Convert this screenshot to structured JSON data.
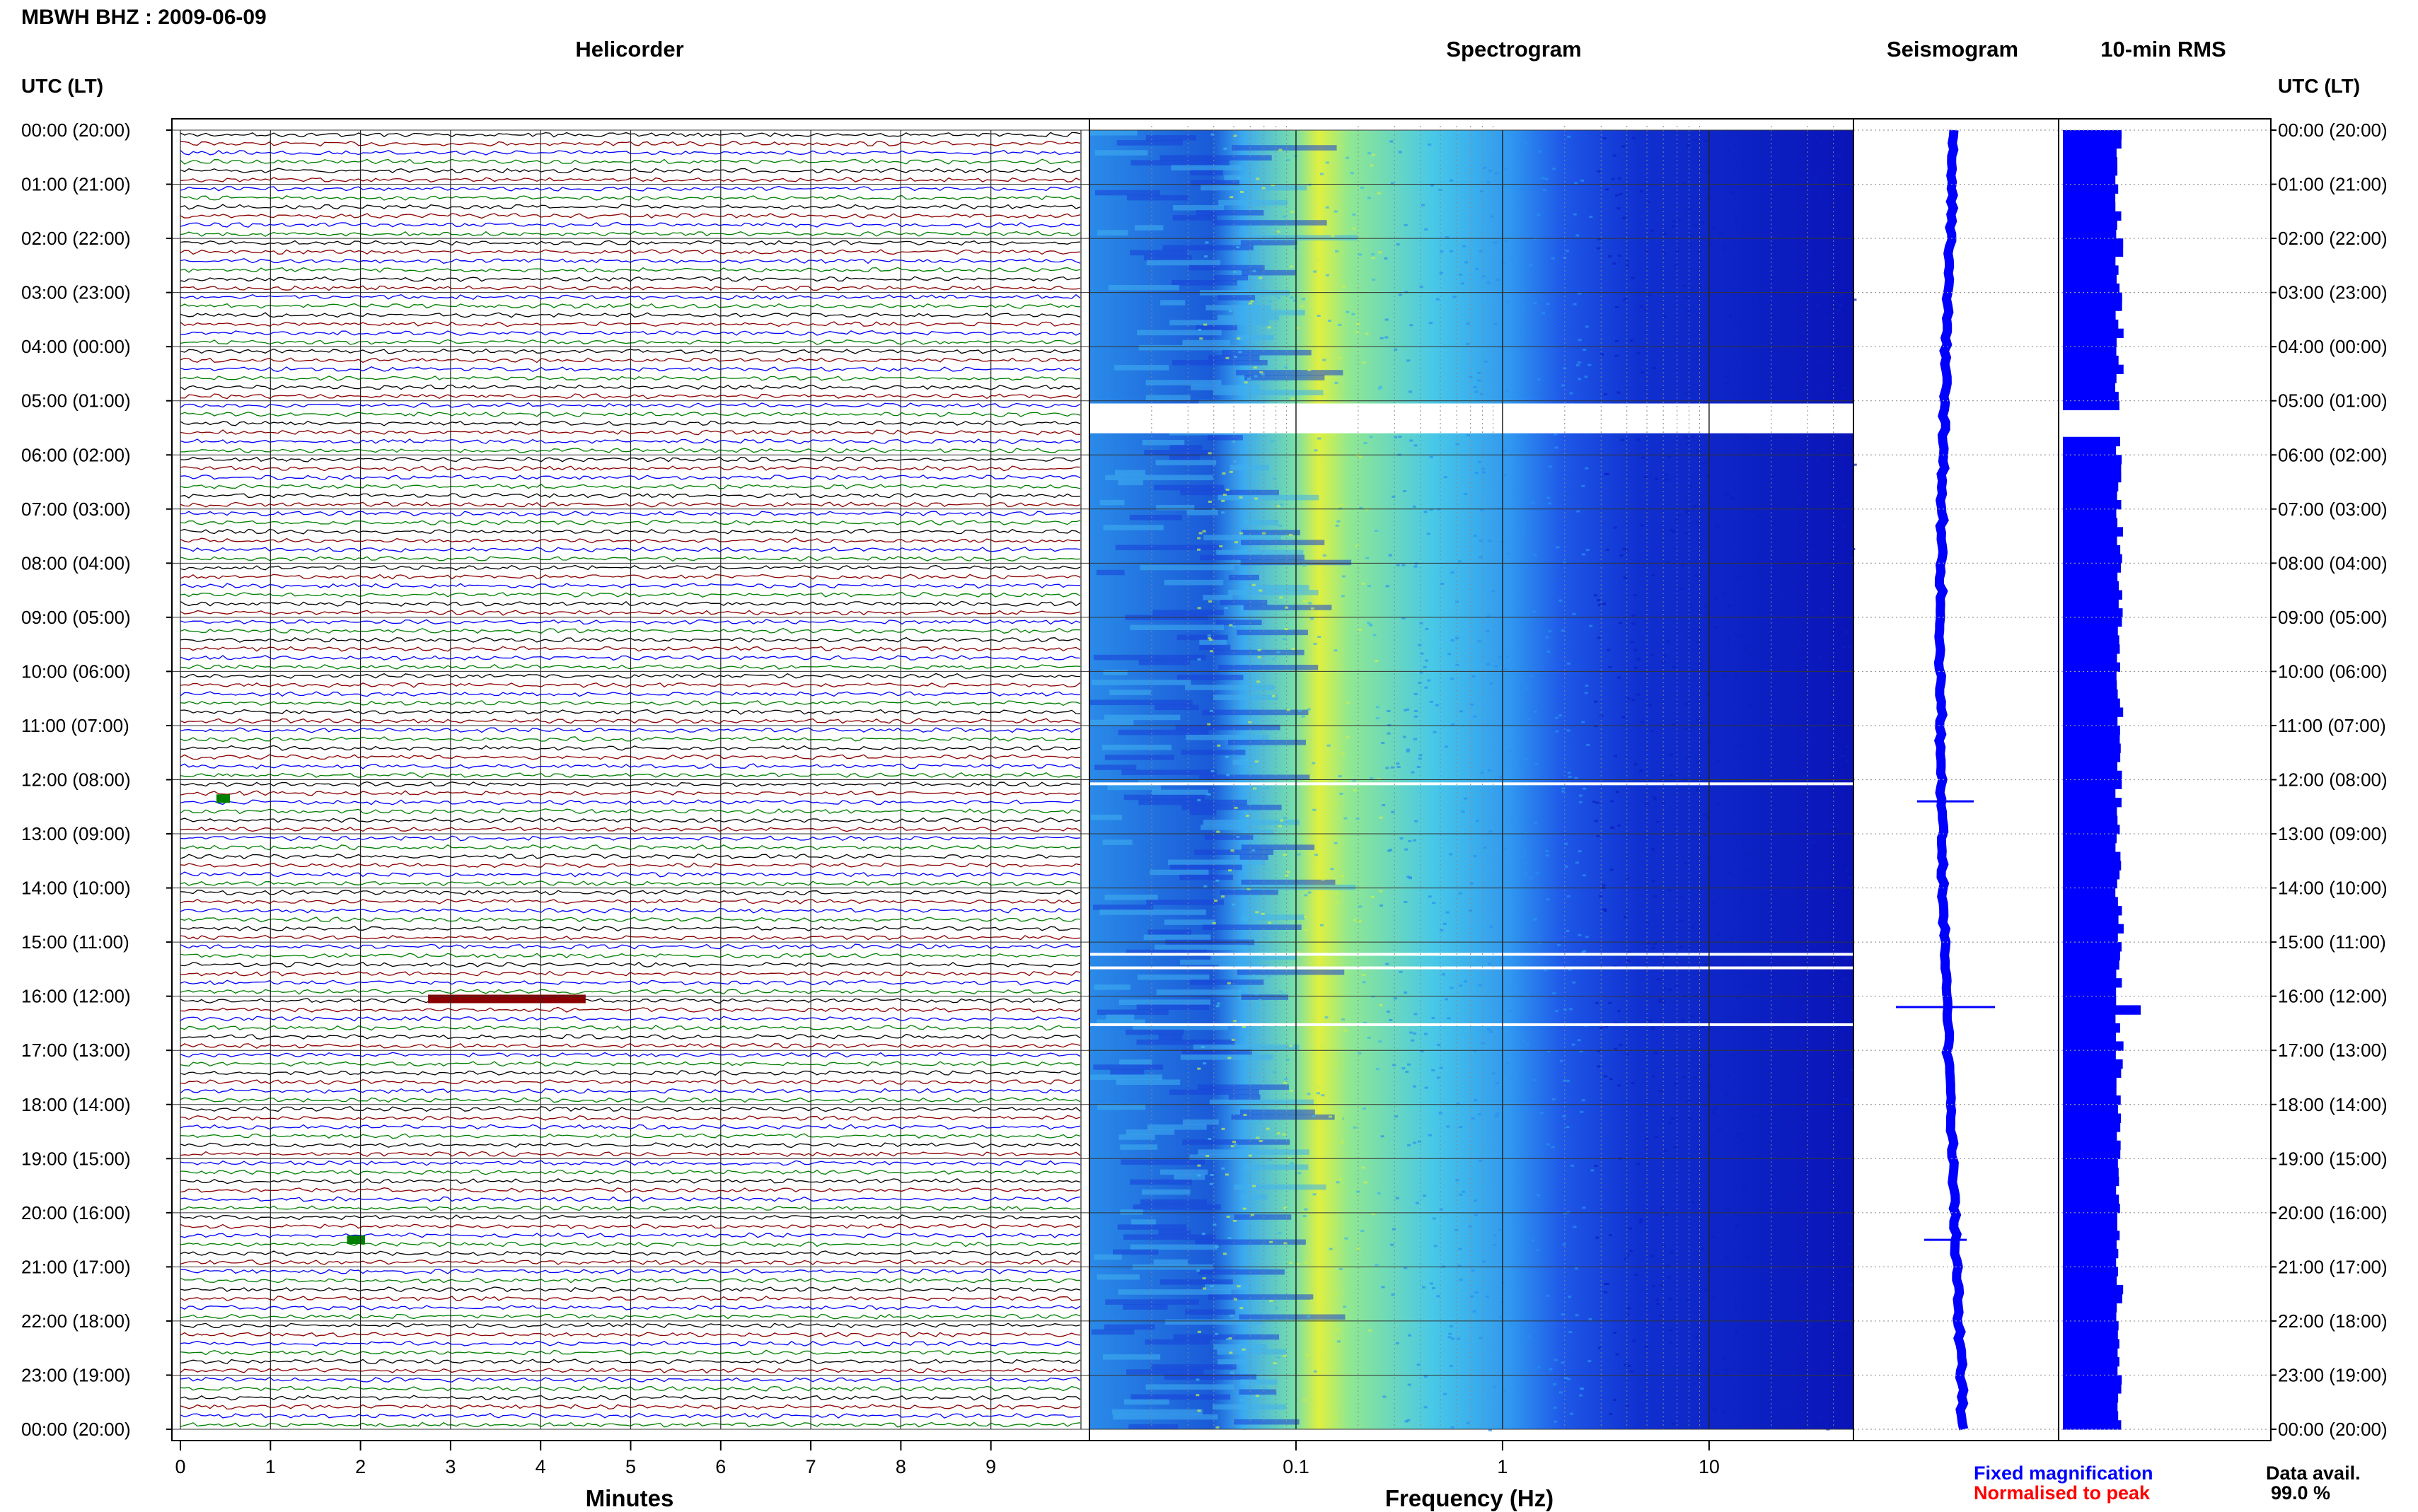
{
  "header": {
    "title": "MBWH BHZ : 2009-06-09"
  },
  "panels": {
    "helicorder": "Helicorder",
    "spectrogram": "Spectrogram",
    "seismogram": "Seismogram",
    "rms": "10-min RMS"
  },
  "axes": {
    "utc_header_left": "UTC (LT)",
    "utc_header_right": "UTC (LT)",
    "helicorder_xlabel": "Minutes",
    "spectrogram_xlabel": "Frequency (Hz)"
  },
  "legend": {
    "fixed": "Fixed magnification",
    "normalised": "Normalised to peak",
    "fixed_color": "#0000ff",
    "normalised_color": "#ff0000"
  },
  "availability": {
    "label": "Data avail.",
    "value": "99.0 %"
  },
  "chart_data": {
    "type": "heatmap",
    "time_labels": [
      "00:00 (20:00)",
      "01:00 (21:00)",
      "02:00 (22:00)",
      "03:00 (23:00)",
      "04:00 (00:00)",
      "05:00 (01:00)",
      "06:00 (02:00)",
      "07:00 (03:00)",
      "08:00 (04:00)",
      "09:00 (05:00)",
      "10:00 (06:00)",
      "11:00 (07:00)",
      "12:00 (08:00)",
      "13:00 (09:00)",
      "14:00 (10:00)",
      "15:00 (11:00)",
      "16:00 (12:00)",
      "17:00 (13:00)",
      "18:00 (14:00)",
      "19:00 (15:00)",
      "20:00 (16:00)",
      "21:00 (17:00)",
      "22:00 (18:00)",
      "23:00 (19:00)",
      "00:00 (20:00)"
    ],
    "helicorder": {
      "x_ticks": [
        "0",
        "1",
        "2",
        "3",
        "4",
        "5",
        "6",
        "7",
        "8",
        "9"
      ],
      "xlim": [
        0,
        10
      ],
      "trace_colors": [
        "#000000",
        "#8b0000",
        "#0000ff",
        "#008000"
      ],
      "events": [
        {
          "hour": 12.35,
          "minute_start": 0.4,
          "minute_end": 0.55,
          "color": "#008000"
        },
        {
          "hour": 16.05,
          "minute_start": 2.75,
          "minute_end": 4.5,
          "color": "#8b0000"
        },
        {
          "hour": 20.5,
          "minute_start": 1.85,
          "minute_end": 2.05,
          "color": "#008000"
        }
      ]
    },
    "spectrogram": {
      "x_scale": "log",
      "xlim": [
        0.01,
        50
      ],
      "x_ticks": [
        "0.1",
        "1",
        "10"
      ],
      "gaps_hours": [
        [
          5.05,
          5.6
        ],
        [
          12.05,
          12.1
        ],
        [
          15.2,
          15.25
        ],
        [
          15.45,
          15.5
        ],
        [
          16.5,
          16.55
        ]
      ],
      "peak_band_hz": [
        0.2,
        0.35
      ],
      "colormap": [
        "#0a10c8",
        "#1a4ef0",
        "#2aa0f0",
        "#60d8c0",
        "#d8f040"
      ]
    },
    "seismogram": {
      "color": "#0000ff"
    },
    "rms_10min": {
      "color": "#0000ff",
      "xlim": [
        0,
        1
      ],
      "peak_hour": 16.2
    }
  }
}
